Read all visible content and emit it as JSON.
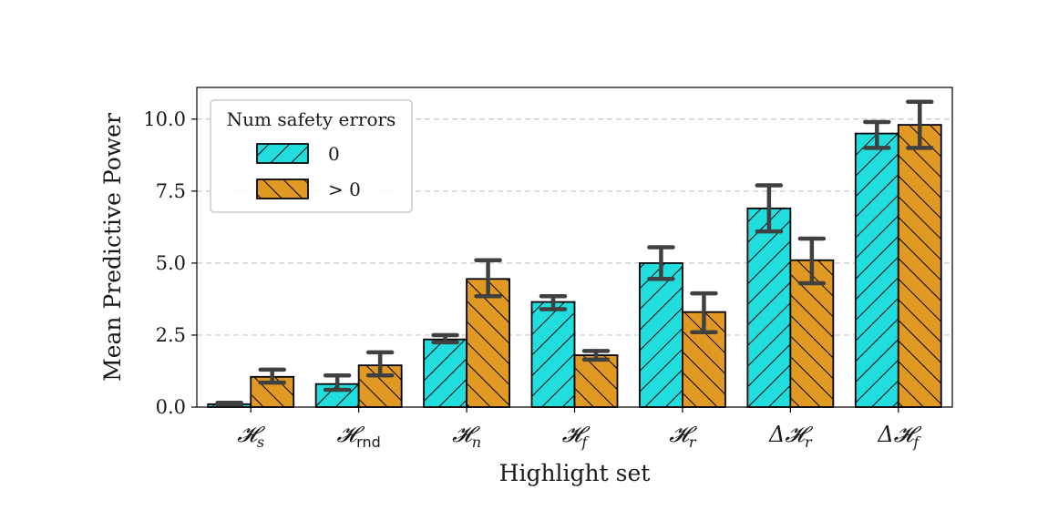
{
  "colors": {
    "series_0": "#22dddd",
    "series_1": "#e09a24",
    "error_bar": "#404040",
    "grid": "#c8c8c8"
  },
  "chart_data": {
    "type": "bar",
    "xlabel": "Highlight set",
    "ylabel": "Mean Predictive Power",
    "ylim": [
      0,
      11.1
    ],
    "yticks": [
      "0.0",
      "2.5",
      "5.0",
      "7.5",
      "10.0"
    ],
    "ytick_values": [
      0,
      2.5,
      5.0,
      7.5,
      10.0
    ],
    "grid": "horizontal dashed",
    "legend": {
      "title": "Num safety errors",
      "placement": "top-left"
    },
    "categories": [
      "𝓗s",
      "𝓗rnd",
      "𝓗n",
      "𝓗f",
      "𝓗r",
      "Δ𝓗r",
      "Δ𝓗f"
    ],
    "category_labels": [
      {
        "base": "𝓗",
        "sub": "s"
      },
      {
        "base": "𝓗",
        "sub": "rnd"
      },
      {
        "base": "𝓗",
        "sub": "n"
      },
      {
        "base": "𝓗",
        "sub": "f"
      },
      {
        "base": "𝓗",
        "sub": "r"
      },
      {
        "base": "Δ𝓗",
        "sub": "r"
      },
      {
        "base": "Δ𝓗",
        "sub": "f"
      }
    ],
    "series": [
      {
        "name": "0",
        "hatch": "backslash",
        "values": [
          0.1,
          0.8,
          2.35,
          3.65,
          5.0,
          6.9,
          9.5
        ],
        "err_low": [
          0.05,
          0.6,
          2.25,
          3.4,
          4.45,
          6.1,
          9.0
        ],
        "err_high": [
          0.15,
          1.1,
          2.5,
          3.85,
          5.55,
          7.7,
          9.9
        ]
      },
      {
        "name": "> 0",
        "hatch": "slash",
        "values": [
          1.05,
          1.45,
          4.45,
          1.8,
          3.3,
          5.1,
          9.8
        ],
        "err_low": [
          0.85,
          1.1,
          3.85,
          1.65,
          2.6,
          4.3,
          9.0
        ],
        "err_high": [
          1.3,
          1.9,
          5.1,
          1.95,
          3.95,
          5.85,
          10.6
        ]
      }
    ]
  }
}
